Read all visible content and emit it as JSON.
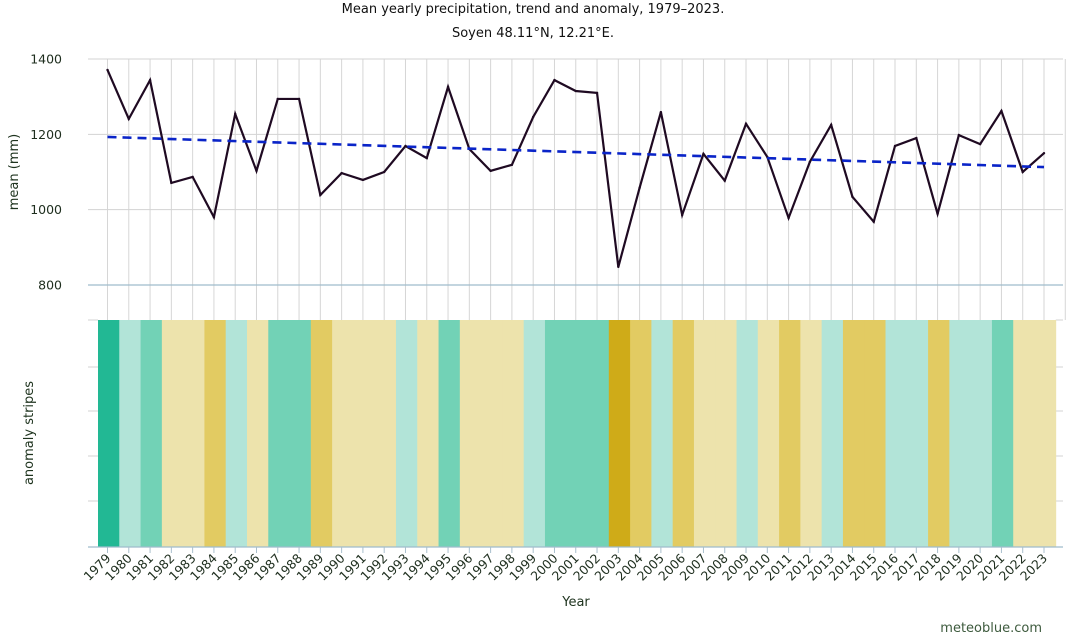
{
  "chart_data": {
    "type": "line",
    "title": "Mean yearly precipitation, trend and anomaly, 1979–2023.",
    "subtitle": "Soyen 48.11°N, 12.21°E.",
    "xlabel": "Year",
    "ylabel": "mean (mm)",
    "stripes_label": "anomaly stripes",
    "ylim": [
      800,
      1400
    ],
    "yticks": [
      1400,
      1200,
      1000,
      800
    ],
    "grid": true,
    "x": [
      1979,
      1980,
      1981,
      1982,
      1983,
      1984,
      1985,
      1986,
      1987,
      1988,
      1989,
      1990,
      1991,
      1992,
      1993,
      1994,
      1995,
      1996,
      1997,
      1998,
      1999,
      2000,
      2001,
      2002,
      2003,
      2004,
      2005,
      2006,
      2007,
      2008,
      2009,
      2010,
      2011,
      2012,
      2013,
      2014,
      2015,
      2016,
      2017,
      2018,
      2019,
      2020,
      2021,
      2022,
      2023
    ],
    "series": [
      {
        "name": "mean yearly precipitation",
        "color": "#1f0a22",
        "style": "solid",
        "values": [
          1371,
          1241,
          1344,
          1071,
          1087,
          980,
          1254,
          1103,
          1294,
          1294,
          1039,
          1097,
          1079,
          1100,
          1169,
          1137,
          1326,
          1161,
          1103,
          1119,
          1246,
          1344,
          1315,
          1310,
          848,
          1058,
          1259,
          986,
          1148,
          1077,
          1228,
          1140,
          978,
          1127,
          1225,
          1034,
          968,
          1169,
          1190,
          989,
          1198,
          1174,
          1262,
          1100,
          1150
        ]
      },
      {
        "name": "trend",
        "color": "#0a24c8",
        "style": "dashed",
        "start": {
          "x": 1979,
          "y": 1193
        },
        "end": {
          "x": 2023,
          "y": 1113
        }
      }
    ],
    "anomaly_stripes": {
      "classes": {
        "strong_wet": "#22b894",
        "wet": "#72d2b6",
        "slight_wet": "#b2e4d8",
        "slight_dry": "#ede3ac",
        "dry": "#e2cb62",
        "strong_dry": "#cfab18"
      },
      "values": [
        "strong_wet",
        "slight_wet",
        "wet",
        "slight_dry",
        "slight_dry",
        "dry",
        "slight_wet",
        "slight_dry",
        "wet",
        "wet",
        "dry",
        "slight_dry",
        "slight_dry",
        "slight_dry",
        "slight_wet",
        "slight_dry",
        "wet",
        "slight_dry",
        "slight_dry",
        "slight_dry",
        "slight_wet",
        "wet",
        "wet",
        "wet",
        "strong_dry",
        "dry",
        "slight_wet",
        "dry",
        "slight_dry",
        "slight_dry",
        "slight_wet",
        "slight_dry",
        "dry",
        "slight_dry",
        "slight_wet",
        "dry",
        "dry",
        "slight_wet",
        "slight_wet",
        "dry",
        "slight_wet",
        "slight_wet",
        "wet",
        "slight_dry",
        "slight_dry"
      ]
    }
  },
  "credit": "meteoblue.com"
}
